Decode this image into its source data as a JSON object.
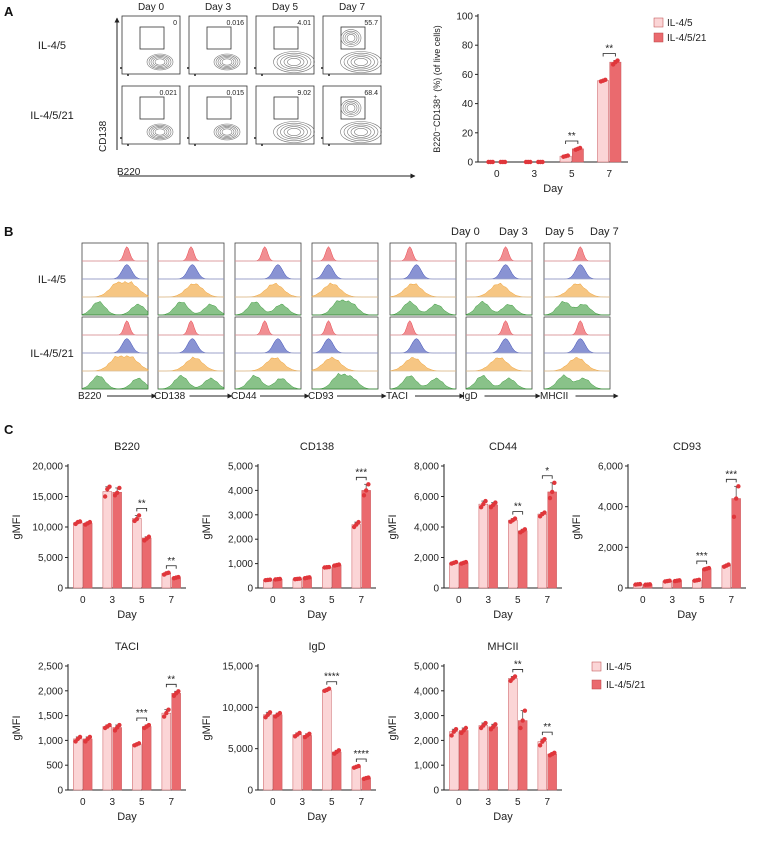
{
  "panels": {
    "A": {
      "letter": "A",
      "flow": {
        "days": [
          "Day 0",
          "Day 3",
          "Day 5",
          "Day 7"
        ],
        "rows": [
          {
            "label": "IL-4/5",
            "values": [
              "0",
              "0.016",
              "4.01",
              "55.7"
            ]
          },
          {
            "label": "IL-4/5/21",
            "values": [
              "0.021",
              "0.015",
              "9.02",
              "68.4"
            ]
          }
        ],
        "y_axis": "CD138",
        "x_axis": "B220"
      }
    },
    "B": {
      "letter": "B",
      "legend": [
        {
          "label": "Day 0",
          "color": "#e8434a"
        },
        {
          "label": "Day 3",
          "color": "#3b4bb5"
        },
        {
          "label": "Day 5",
          "color": "#f0a030"
        },
        {
          "label": "Day 7",
          "color": "#3b9a3b"
        }
      ],
      "row_labels": [
        "IL-4/5",
        "IL-4/5/21"
      ],
      "markers": [
        "B220",
        "CD138",
        "CD44",
        "CD93",
        "TACI",
        "IgD",
        "MHCII"
      ]
    },
    "C": {
      "letter": "C",
      "legend": [
        {
          "label": "IL-4/5",
          "color": "#fbd5d6"
        },
        {
          "label": "IL-4/5/21",
          "color": "#ea6a6e"
        }
      ]
    }
  },
  "chart_data": [
    {
      "id": "A_bar",
      "type": "bar",
      "title": "",
      "ylabel": "B220⁻CD138⁺ (%) (of live cells)",
      "xlabel": "Day",
      "categories": [
        "0",
        "3",
        "5",
        "7"
      ],
      "ylim": [
        0,
        100
      ],
      "yticks": [
        0,
        20,
        40,
        60,
        80,
        100
      ],
      "ytick_labels": [
        "0",
        "20",
        "40",
        "60",
        "80",
        "100"
      ],
      "series": [
        {
          "name": "IL-4/5",
          "values": [
            0.0,
            0.0,
            4.0,
            55.7
          ],
          "points": [
            [
              0,
              0,
              0
            ],
            [
              0,
              0,
              0
            ],
            [
              3.6,
              4.0,
              4.4
            ],
            [
              55.2,
              55.7,
              56.3
            ]
          ]
        },
        {
          "name": "IL-4/5/21",
          "values": [
            0.0,
            0.0,
            9.0,
            68.4
          ],
          "points": [
            [
              0,
              0,
              0
            ],
            [
              0,
              0,
              0
            ],
            [
              8.4,
              9.0,
              9.6
            ],
            [
              66.8,
              68.4,
              69.5
            ]
          ]
        }
      ],
      "annotations": [
        {
          "cat": 2,
          "text": "**"
        },
        {
          "cat": 3,
          "text": "**"
        }
      ]
    },
    {
      "id": "C_B220",
      "type": "bar",
      "title": "B220",
      "ylabel": "gMFI",
      "xlabel": "Day",
      "categories": [
        "0",
        "3",
        "5",
        "7"
      ],
      "ylim": [
        0,
        20000
      ],
      "yticks": [
        0,
        5000,
        10000,
        15000,
        20000
      ],
      "ytick_labels": [
        "0",
        "5,000",
        "10,000",
        "15,000",
        "20,000"
      ],
      "series": [
        {
          "name": "IL-4/5",
          "values": [
            10700,
            15800,
            11400,
            2400
          ],
          "points": [
            [
              10500,
              10800,
              10900
            ],
            [
              15000,
              16200,
              16600
            ],
            [
              11000,
              11300,
              11900
            ],
            [
              2200,
              2400,
              2500
            ]
          ]
        },
        {
          "name": "IL-4/5/21",
          "values": [
            10600,
            15700,
            8200,
            1700
          ],
          "points": [
            [
              10400,
              10600,
              10800
            ],
            [
              15200,
              15600,
              16400
            ],
            [
              7800,
              8100,
              8400
            ],
            [
              1600,
              1700,
              1800
            ]
          ]
        }
      ],
      "annotations": [
        {
          "cat": 2,
          "text": "**"
        },
        {
          "cat": 3,
          "text": "**"
        }
      ]
    },
    {
      "id": "C_CD138",
      "type": "bar",
      "title": "CD138",
      "ylabel": "gMFI",
      "xlabel": "Day",
      "categories": [
        "0",
        "3",
        "5",
        "7"
      ],
      "ylim": [
        0,
        5000
      ],
      "yticks": [
        0,
        1000,
        2000,
        3000,
        4000,
        5000
      ],
      "ytick_labels": [
        "0",
        "1,000",
        "2,000",
        "3,000",
        "4,000",
        "5,000"
      ],
      "series": [
        {
          "name": "IL-4/5",
          "values": [
            330,
            370,
            850,
            2600
          ],
          "points": [
            [
              320,
              330,
              340
            ],
            [
              360,
              370,
              380
            ],
            [
              840,
              850,
              860
            ],
            [
              2500,
              2600,
              2700
            ]
          ]
        },
        {
          "name": "IL-4/5/21",
          "values": [
            360,
            420,
            940,
            4000
          ],
          "points": [
            [
              350,
              360,
              370
            ],
            [
              400,
              420,
              440
            ],
            [
              920,
              940,
              960
            ],
            [
              3800,
              4000,
              4250
            ]
          ]
        }
      ],
      "annotations": [
        {
          "cat": 3,
          "text": "***"
        }
      ]
    },
    {
      "id": "C_CD44",
      "type": "bar",
      "title": "CD44",
      "ylabel": "gMFI",
      "xlabel": "Day",
      "categories": [
        "0",
        "3",
        "5",
        "7"
      ],
      "ylim": [
        0,
        8000
      ],
      "yticks": [
        0,
        2000,
        4000,
        6000,
        8000
      ],
      "ytick_labels": [
        "0",
        "2,000",
        "4,000",
        "6,000",
        "8,000"
      ],
      "series": [
        {
          "name": "IL-4/5",
          "values": [
            1650,
            5500,
            4450,
            4850
          ],
          "points": [
            [
              1600,
              1650,
              1700
            ],
            [
              5300,
              5500,
              5700
            ],
            [
              4350,
              4450,
              4550
            ],
            [
              4700,
              4850,
              4950
            ]
          ]
        },
        {
          "name": "IL-4/5/21",
          "values": [
            1650,
            5450,
            3750,
            6300
          ],
          "points": [
            [
              1600,
              1650,
              1700
            ],
            [
              5300,
              5450,
              5600
            ],
            [
              3650,
              3750,
              3850
            ],
            [
              5900,
              6300,
              6900
            ]
          ]
        }
      ],
      "annotations": [
        {
          "cat": 2,
          "text": "**"
        },
        {
          "cat": 3,
          "text": "*"
        }
      ]
    },
    {
      "id": "C_CD93",
      "type": "bar",
      "title": "CD93",
      "ylabel": "gMFI",
      "xlabel": "Day",
      "categories": [
        "0",
        "3",
        "5",
        "7"
      ],
      "ylim": [
        0,
        6000
      ],
      "yticks": [
        0,
        2000,
        4000,
        6000
      ],
      "ytick_labels": [
        "0",
        "2,000",
        "4,000",
        "6,000"
      ],
      "series": [
        {
          "name": "IL-4/5",
          "values": [
            180,
            340,
            380,
            1100
          ],
          "points": [
            [
              170,
              180,
              190
            ],
            [
              320,
              340,
              360
            ],
            [
              360,
              380,
              400
            ],
            [
              1050,
              1100,
              1150
            ]
          ]
        },
        {
          "name": "IL-4/5/21",
          "values": [
            170,
            360,
            950,
            4400
          ],
          "points": [
            [
              160,
              170,
              180
            ],
            [
              340,
              360,
              380
            ],
            [
              920,
              950,
              980
            ],
            [
              3500,
              4400,
              5000
            ]
          ]
        }
      ],
      "annotations": [
        {
          "cat": 2,
          "text": "***"
        },
        {
          "cat": 3,
          "text": "***"
        }
      ]
    },
    {
      "id": "C_TACI",
      "type": "bar",
      "title": "TACI",
      "ylabel": "gMFI",
      "xlabel": "Day",
      "categories": [
        "0",
        "3",
        "5",
        "7"
      ],
      "ylim": [
        0,
        2500
      ],
      "yticks": [
        0,
        500,
        1000,
        1500,
        2000,
        2500
      ],
      "ytick_labels": [
        "0",
        "500",
        "1,000",
        "1,500",
        "2,000",
        "2,500"
      ],
      "series": [
        {
          "name": "IL-4/5",
          "values": [
            1030,
            1280,
            920,
            1550
          ],
          "points": [
            [
              980,
              1030,
              1070
            ],
            [
              1250,
              1280,
              1310
            ],
            [
              900,
              920,
              940
            ],
            [
              1480,
              1550,
              1620
            ]
          ]
        },
        {
          "name": "IL-4/5/21",
          "values": [
            1030,
            1260,
            1280,
            1950
          ],
          "points": [
            [
              980,
              1030,
              1070
            ],
            [
              1200,
              1260,
              1310
            ],
            [
              1250,
              1280,
              1310
            ],
            [
              1900,
              1950,
              1990
            ]
          ]
        }
      ],
      "annotations": [
        {
          "cat": 2,
          "text": "***"
        },
        {
          "cat": 3,
          "text": "**"
        }
      ]
    },
    {
      "id": "C_IgD",
      "type": "bar",
      "title": "IgD",
      "ylabel": "gMFI",
      "xlabel": "Day",
      "categories": [
        "0",
        "3",
        "5",
        "7"
      ],
      "ylim": [
        0,
        15000
      ],
      "yticks": [
        0,
        5000,
        10000,
        15000
      ],
      "ytick_labels": [
        "0",
        "5,000",
        "10,000",
        "15,000"
      ],
      "series": [
        {
          "name": "IL-4/5",
          "values": [
            9100,
            6700,
            12100,
            2800
          ],
          "points": [
            [
              8800,
              9100,
              9400
            ],
            [
              6500,
              6700,
              6900
            ],
            [
              12000,
              12100,
              12250
            ],
            [
              2700,
              2800,
              2900
            ]
          ]
        },
        {
          "name": "IL-4/5/21",
          "values": [
            9100,
            6600,
            4600,
            1450
          ],
          "points": [
            [
              8900,
              9100,
              9300
            ],
            [
              6400,
              6600,
              6800
            ],
            [
              4400,
              4600,
              4800
            ],
            [
              1350,
              1450,
              1500
            ]
          ]
        }
      ],
      "annotations": [
        {
          "cat": 2,
          "text": "****"
        },
        {
          "cat": 3,
          "text": "****"
        }
      ]
    },
    {
      "id": "C_MHCII",
      "type": "bar",
      "title": "MHCII",
      "ylabel": "gMFI",
      "xlabel": "Day",
      "categories": [
        "0",
        "3",
        "5",
        "7"
      ],
      "ylim": [
        0,
        5000
      ],
      "yticks": [
        0,
        1000,
        2000,
        3000,
        4000,
        5000
      ],
      "ytick_labels": [
        "0",
        "1,000",
        "2,000",
        "3,000",
        "4,000",
        "5,000"
      ],
      "series": [
        {
          "name": "IL-4/5",
          "values": [
            2350,
            2600,
            4500,
            1950
          ],
          "points": [
            [
              2200,
              2350,
              2450
            ],
            [
              2500,
              2600,
              2700
            ],
            [
              4400,
              4500,
              4580
            ],
            [
              1800,
              1950,
              2050
            ]
          ]
        },
        {
          "name": "IL-4/5/21",
          "values": [
            2400,
            2550,
            2800,
            1450
          ],
          "points": [
            [
              2300,
              2400,
              2500
            ],
            [
              2450,
              2550,
              2650
            ],
            [
              2500,
              2800,
              3200
            ],
            [
              1400,
              1450,
              1500
            ]
          ]
        }
      ],
      "annotations": [
        {
          "cat": 2,
          "text": "**"
        },
        {
          "cat": 3,
          "text": "**"
        }
      ]
    }
  ]
}
